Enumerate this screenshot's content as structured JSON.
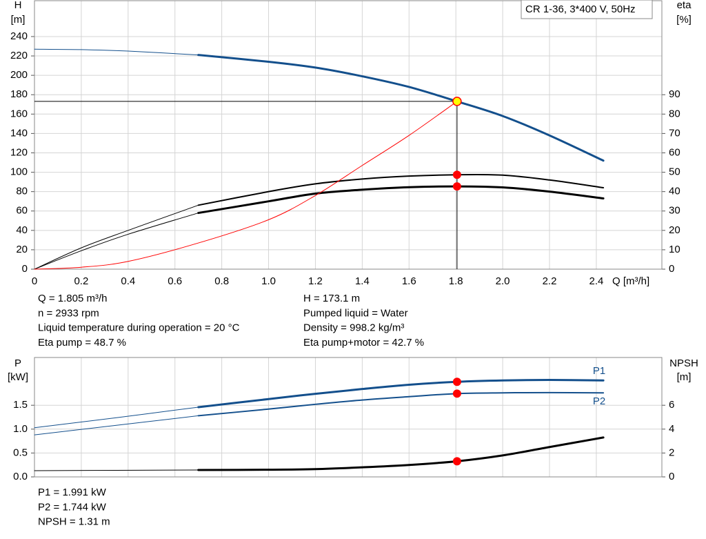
{
  "chart_data": [
    {
      "type": "line",
      "annotation": "CR 1-36, 3*400 V, 50Hz",
      "ylabel": "H",
      "yunit": "[m]",
      "y2label": "eta",
      "y2unit": "[%]",
      "xlabel": "Q [m³/h]",
      "xlim": [
        0,
        2.68
      ],
      "ylim": [
        0,
        277
      ],
      "y2lim": [
        0,
        138.5
      ],
      "xticks": [
        0,
        0.2,
        0.4,
        0.6,
        0.8,
        {
          "value": 1,
          "label": "1.0"
        },
        1.2,
        1.4,
        1.6,
        1.8,
        {
          "value": 2,
          "label": "2.0"
        },
        2.2,
        2.4
      ],
      "yticks": [
        0,
        20,
        40,
        60,
        80,
        100,
        120,
        140,
        160,
        180,
        200,
        220,
        240
      ],
      "y2ticks": [
        0,
        10,
        20,
        30,
        40,
        50,
        60,
        70,
        80,
        90
      ],
      "show_xtick_labels": true,
      "grid": true,
      "crosshair": true,
      "series": [
        {
          "color": "#134f8c",
          "width": 1,
          "x": [
            0,
            0.2,
            0.4,
            0.7
          ],
          "values": [
            227,
            226.5,
            225,
            221
          ]
        },
        {
          "color": "#134f8c",
          "width": 3,
          "x": [
            0.7,
            1.0,
            1.2,
            1.4,
            1.6,
            1.805,
            2.0,
            2.2,
            2.43
          ],
          "values": [
            221,
            214,
            208,
            199,
            188,
            173.1,
            158,
            138,
            112
          ]
        },
        {
          "color": "#000000",
          "width": 1,
          "axis": "y2",
          "x": [
            0,
            0.2,
            0.4,
            0.7
          ],
          "values": [
            0,
            11,
            20,
            33
          ]
        },
        {
          "color": "#000000",
          "width": 2,
          "axis": "y2",
          "x": [
            0.7,
            1.0,
            1.2,
            1.4,
            1.6,
            1.805,
            2.0,
            2.2,
            2.43
          ],
          "values": [
            33,
            40,
            44,
            46.5,
            48,
            48.7,
            48.5,
            46,
            42
          ]
        },
        {
          "color": "#000000",
          "width": 1,
          "axis": "y2",
          "x": [
            0,
            0.2,
            0.4,
            0.7
          ],
          "values": [
            0,
            9.5,
            18,
            29
          ]
        },
        {
          "color": "#000000",
          "width": 3,
          "axis": "y2",
          "x": [
            0.7,
            1.0,
            1.2,
            1.4,
            1.6,
            1.805,
            2.0,
            2.2,
            2.43
          ],
          "values": [
            29,
            35,
            39,
            41,
            42.3,
            42.7,
            42.2,
            40,
            36.5
          ]
        },
        {
          "color": "#ff0000",
          "width": 1,
          "x": [
            0,
            0.2,
            0.4,
            0.7,
            1.0,
            1.2,
            1.4,
            1.6,
            1.805
          ],
          "values": [
            0,
            2,
            8,
            27,
            51,
            76,
            107,
            138,
            173.1
          ]
        }
      ],
      "points": [
        {
          "x": 1.805,
          "y": 173.1,
          "color": "#ffff00",
          "stroke": "#ff0000"
        },
        {
          "x": 1.805,
          "y": 48.7,
          "axis": "y2",
          "color": "#ff0000"
        },
        {
          "x": 1.805,
          "y": 42.7,
          "axis": "y2",
          "color": "#ff0000"
        }
      ],
      "info": [
        [
          "Q = 1.805 m³/h",
          "n = 2933 rpm",
          "Liquid temperature during operation = 20 °C",
          "Eta pump = 48.7 %"
        ],
        [
          "H = 173.1 m",
          "Pumped liquid = Water",
          "Density = 998.2 kg/m³",
          "Eta pump+motor = 42.7 %"
        ]
      ]
    },
    {
      "type": "line",
      "ylabel": "P",
      "yunit": "[kW]",
      "y2label": "NPSH",
      "y2unit": "[m]",
      "xlim": [
        0,
        2.68
      ],
      "ylim": [
        0,
        2.5
      ],
      "y2lim": [
        0,
        10
      ],
      "xticks": [
        0,
        0.2,
        0.4,
        0.6,
        0.8,
        1,
        1.2,
        1.4,
        1.6,
        1.8,
        2,
        2.2,
        2.4
      ],
      "yticks": [
        {
          "value": 0,
          "label": "0.0"
        },
        0.5,
        {
          "value": 1,
          "label": "1.0"
        },
        1.5
      ],
      "y2ticks": [
        0,
        2,
        4,
        6
      ],
      "show_xtick_labels": false,
      "grid": true,
      "crosshair": false,
      "series": [
        {
          "color": "#134f8c",
          "width": 1,
          "x": [
            0,
            0.35,
            0.7
          ],
          "values": [
            1.03,
            1.24,
            1.46
          ]
        },
        {
          "name": "P1",
          "color": "#134f8c",
          "width": 3,
          "x": [
            0.7,
            1.0,
            1.2,
            1.4,
            1.6,
            1.805,
            2.0,
            2.2,
            2.43
          ],
          "values": [
            1.46,
            1.63,
            1.74,
            1.84,
            1.93,
            1.991,
            2.02,
            2.03,
            2.02
          ]
        },
        {
          "color": "#134f8c",
          "width": 1,
          "x": [
            0,
            0.35,
            0.7
          ],
          "values": [
            0.88,
            1.08,
            1.28
          ]
        },
        {
          "name": "P2",
          "color": "#134f8c",
          "width": 2,
          "x": [
            0.7,
            1.0,
            1.2,
            1.4,
            1.6,
            1.805,
            2.0,
            2.2,
            2.43
          ],
          "values": [
            1.28,
            1.42,
            1.52,
            1.61,
            1.68,
            1.744,
            1.76,
            1.765,
            1.76
          ]
        },
        {
          "color": "#000000",
          "width": 1,
          "axis": "y2",
          "x": [
            0,
            0.7
          ],
          "values": [
            0.52,
            0.58
          ]
        },
        {
          "color": "#000000",
          "width": 3,
          "axis": "y2",
          "x": [
            0.7,
            1.0,
            1.2,
            1.4,
            1.6,
            1.805,
            2.0,
            2.2,
            2.43
          ],
          "values": [
            0.58,
            0.6,
            0.65,
            0.8,
            1.0,
            1.31,
            1.8,
            2.5,
            3.3
          ]
        }
      ],
      "points": [
        {
          "x": 1.805,
          "y": 1.991,
          "color": "#ff0000"
        },
        {
          "x": 1.805,
          "y": 1.744,
          "color": "#ff0000"
        },
        {
          "x": 1.805,
          "y": 1.31,
          "axis": "y2",
          "color": "#ff0000"
        }
      ],
      "info": [
        [
          "P1 = 1.991 kW",
          "P2 = 1.744 kW",
          "NPSH = 1.31 m"
        ]
      ]
    }
  ]
}
